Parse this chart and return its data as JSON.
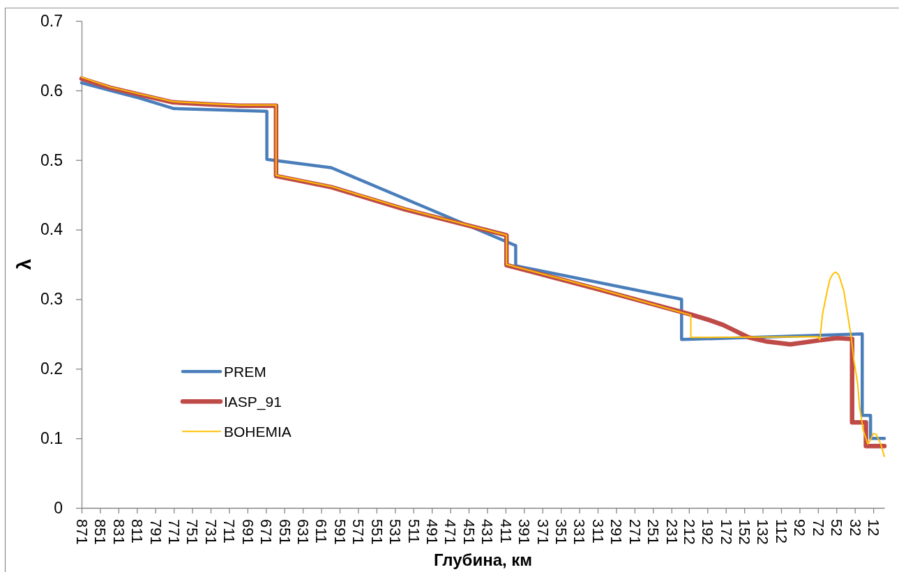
{
  "chart_data": {
    "type": "line",
    "xlabel": "Глубина, км",
    "ylabel": "λ",
    "xlim": [
      871,
      0
    ],
    "xticks": [
      871,
      851,
      831,
      811,
      791,
      771,
      751,
      731,
      711,
      691,
      671,
      651,
      631,
      611,
      591,
      571,
      551,
      531,
      511,
      491,
      471,
      451,
      431,
      411,
      391,
      371,
      351,
      331,
      311,
      291,
      271,
      251,
      231,
      212,
      192,
      172,
      152,
      132,
      112,
      92,
      72,
      52,
      32,
      12
    ],
    "ylim": [
      0,
      0.7
    ],
    "yticks": [
      0,
      0.1,
      0.2,
      0.3,
      0.4,
      0.5,
      0.6,
      0.7
    ],
    "legend": "bottom left",
    "series": [
      {
        "name": "PREM",
        "color": "#4a7ebb",
        "x": [
          871,
          840,
          808,
          771,
          670,
          670,
          600,
          400,
          400,
          220,
          220,
          24,
          24,
          15,
          15,
          0
        ],
        "values": [
          0.611,
          0.6,
          0.589,
          0.574,
          0.57,
          0.501,
          0.489,
          0.377,
          0.348,
          0.3,
          0.242,
          0.25,
          0.133,
          0.133,
          0.1,
          0.1
        ]
      },
      {
        "name": "IASP_91",
        "color": "#be4b48",
        "x": [
          871,
          840,
          808,
          772,
          733,
          700,
          660,
          660,
          600,
          520,
          410,
          410,
          310,
          210,
          190,
          175,
          147,
          127,
          102,
          70,
          51,
          39,
          35,
          35,
          20,
          20,
          0
        ],
        "values": [
          0.617,
          0.604,
          0.594,
          0.583,
          0.58,
          0.578,
          0.578,
          0.477,
          0.461,
          0.429,
          0.392,
          0.349,
          0.314,
          0.278,
          0.27,
          0.263,
          0.245,
          0.239,
          0.235,
          0.241,
          0.244,
          0.243,
          0.243,
          0.123,
          0.123,
          0.089,
          0.089
        ]
      },
      {
        "name": "BOHEMIA",
        "color": "#ffc000",
        "x": [
          871,
          840,
          808,
          772,
          733,
          700,
          660,
          660,
          600,
          520,
          410,
          410,
          310,
          210,
          210,
          72,
          70,
          67,
          62,
          59,
          56,
          53,
          50,
          48,
          44,
          40,
          36,
          33,
          29,
          27,
          23,
          18,
          15,
          12,
          9,
          4,
          0
        ],
        "values": [
          0.619,
          0.605,
          0.595,
          0.584,
          0.581,
          0.579,
          0.579,
          0.478,
          0.462,
          0.43,
          0.392,
          0.35,
          0.315,
          0.277,
          0.245,
          0.246,
          0.242,
          0.279,
          0.312,
          0.329,
          0.336,
          0.339,
          0.336,
          0.329,
          0.312,
          0.279,
          0.246,
          0.212,
          0.179,
          0.146,
          0.112,
          0.092,
          0.098,
          0.107,
          0.106,
          0.092,
          0.074
        ]
      }
    ]
  }
}
